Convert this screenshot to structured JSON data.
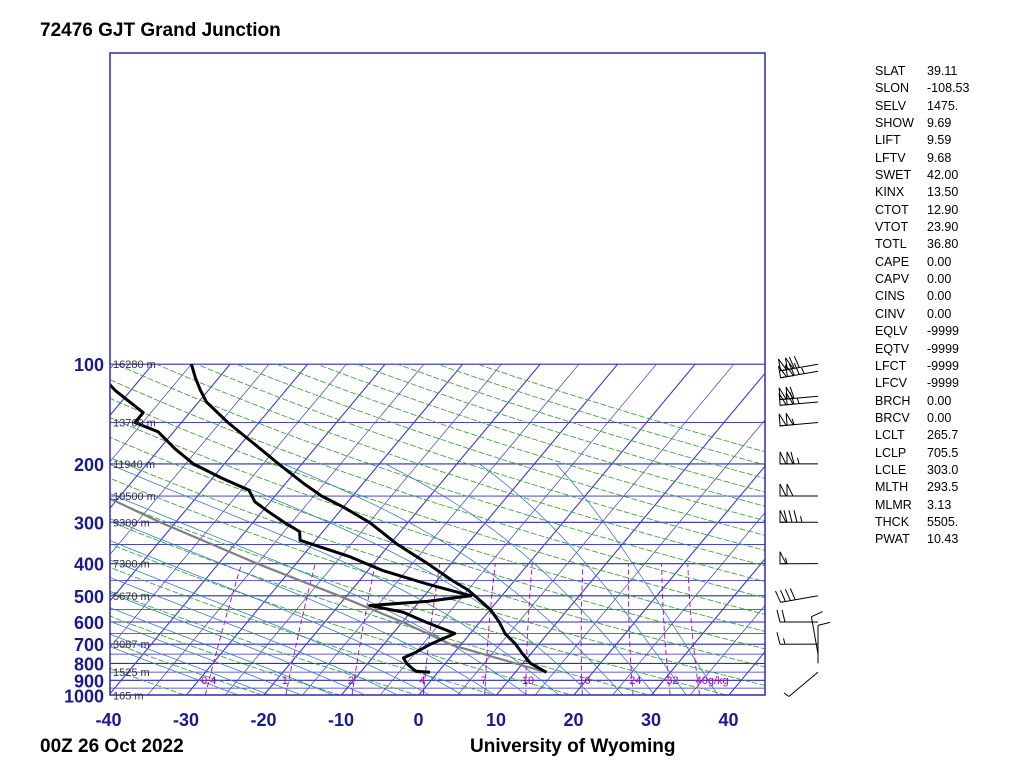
{
  "title": "72476 GJT Grand Junction",
  "footer": {
    "time": "00Z 26 Oct 2022",
    "source": "University of Wyoming"
  },
  "colors": {
    "frame": "#2b2bb8",
    "isotherm": "#3a3ad0",
    "dry_adiabat": "#3ea83e",
    "moist_adiabat": "#3a7fc0",
    "mixing_ratio": "#b000b0",
    "sounding": "#000000",
    "parcel": "#808080"
  },
  "chart_data": {
    "type": "skew-t",
    "pressure_levels": [
      100,
      200,
      300,
      400,
      500,
      600,
      700,
      800,
      900,
      1000
    ],
    "pressure_labels": [
      "100",
      "200",
      "300",
      "400",
      "500",
      "600",
      "700",
      "800",
      "900",
      "1000"
    ],
    "temperature_ticks": [
      -40,
      -30,
      -20,
      -10,
      0,
      10,
      20,
      30,
      40
    ],
    "temperature_labels": [
      "-40",
      "-30",
      "-20",
      "-10",
      "0",
      "10",
      "20",
      "30",
      "40"
    ],
    "height_labels": [
      {
        "p": 100,
        "text": "16280 m"
      },
      {
        "p": 150,
        "text": "13760 m"
      },
      {
        "p": 200,
        "text": "11940 m"
      },
      {
        "p": 250,
        "text": "10500 m"
      },
      {
        "p": 300,
        "text": "9300 m"
      },
      {
        "p": 400,
        "text": "7300 m"
      },
      {
        "p": 500,
        "text": "5670 m"
      },
      {
        "p": 700,
        "text": "3087 m"
      },
      {
        "p": 850,
        "text": "1525 m"
      },
      {
        "p": 1000,
        "text": "165 m"
      }
    ],
    "mixing_ratio_labels": [
      "0.4",
      "1",
      "2",
      "4",
      "7",
      "10",
      "16",
      "24",
      "32",
      "40g/kg"
    ],
    "mixing_ratio_values": [
      0.4,
      1,
      2,
      4,
      7,
      10,
      16,
      24,
      32,
      40
    ],
    "temperature_profile": [
      {
        "p": 851,
        "t": 14.0
      },
      {
        "p": 800,
        "t": 11.0
      },
      {
        "p": 750,
        "t": 9.0
      },
      {
        "p": 700,
        "t": 7.0
      },
      {
        "p": 650,
        "t": 4.5
      },
      {
        "p": 600,
        "t": 2.5
      },
      {
        "p": 550,
        "t": 0.0
      },
      {
        "p": 500,
        "t": -3.5
      },
      {
        "p": 480,
        "t": -5.0
      },
      {
        "p": 450,
        "t": -8.0
      },
      {
        "p": 400,
        "t": -13.0
      },
      {
        "p": 350,
        "t": -19.0
      },
      {
        "p": 300,
        "t": -25.0
      },
      {
        "p": 270,
        "t": -30.0
      },
      {
        "p": 250,
        "t": -34.0
      },
      {
        "p": 230,
        "t": -37.5
      },
      {
        "p": 200,
        "t": -43.0
      },
      {
        "p": 180,
        "t": -47.0
      },
      {
        "p": 150,
        "t": -54.0
      },
      {
        "p": 130,
        "t": -59.0
      },
      {
        "p": 120,
        "t": -61.0
      },
      {
        "p": 110,
        "t": -63.0
      },
      {
        "p": 100,
        "t": -65.0
      }
    ],
    "dewpoint_profile": [
      {
        "p": 851,
        "t": -1.0
      },
      {
        "p": 845,
        "t": -3.0
      },
      {
        "p": 800,
        "t": -5.0
      },
      {
        "p": 770,
        "t": -6.0
      },
      {
        "p": 740,
        "t": -5.0
      },
      {
        "p": 700,
        "t": -4.0
      },
      {
        "p": 650,
        "t": -2.0
      },
      {
        "p": 600,
        "t": -7.0
      },
      {
        "p": 560,
        "t": -11.0
      },
      {
        "p": 535,
        "t": -16.0
      },
      {
        "p": 520,
        "t": -9.0
      },
      {
        "p": 500,
        "t": -4.0
      },
      {
        "p": 460,
        "t": -11.0
      },
      {
        "p": 420,
        "t": -18.0
      },
      {
        "p": 380,
        "t": -24.0
      },
      {
        "p": 340,
        "t": -32.0
      },
      {
        "p": 320,
        "t": -33.0
      },
      {
        "p": 300,
        "t": -36.0
      },
      {
        "p": 280,
        "t": -39.0
      },
      {
        "p": 260,
        "t": -42.0
      },
      {
        "p": 240,
        "t": -44.0
      },
      {
        "p": 220,
        "t": -49.0
      },
      {
        "p": 200,
        "t": -54.0
      },
      {
        "p": 180,
        "t": -58.0
      },
      {
        "p": 160,
        "t": -62.0
      },
      {
        "p": 150,
        "t": -66.0
      },
      {
        "p": 140,
        "t": -66.0
      },
      {
        "p": 120,
        "t": -72.0
      },
      {
        "p": 100,
        "t": -78.0
      }
    ],
    "parcel_profile": [
      {
        "p": 851,
        "t": 14.0
      },
      {
        "p": 705.5,
        "t": -1.0
      },
      {
        "p": 600,
        "t": -10.0
      },
      {
        "p": 500,
        "t": -21.0
      },
      {
        "p": 400,
        "t": -35.0
      },
      {
        "p": 300,
        "t": -52.0
      },
      {
        "p": 250,
        "t": -62.0
      },
      {
        "p": 200,
        "t": -73.0
      },
      {
        "p": 150,
        "t": -88.0
      },
      {
        "p": 100,
        "t": -108.0
      }
    ],
    "wind_barbs": [
      {
        "p": 100,
        "dir": 260,
        "spd": 120
      },
      {
        "p": 105,
        "dir": 260,
        "spd": 125
      },
      {
        "p": 125,
        "dir": 265,
        "spd": 110
      },
      {
        "p": 130,
        "dir": 265,
        "spd": 115
      },
      {
        "p": 150,
        "dir": 265,
        "spd": 105
      },
      {
        "p": 200,
        "dir": 270,
        "spd": 115
      },
      {
        "p": 250,
        "dir": 270,
        "spd": 100
      },
      {
        "p": 300,
        "dir": 270,
        "spd": 85
      },
      {
        "p": 400,
        "dir": 270,
        "spd": 55
      },
      {
        "p": 500,
        "dir": 260,
        "spd": 40
      },
      {
        "p": 600,
        "dir": 270,
        "spd": 20
      },
      {
        "p": 700,
        "dir": 270,
        "spd": 15
      },
      {
        "p": 750,
        "dir": 350,
        "spd": 10
      },
      {
        "p": 800,
        "dir": 360,
        "spd": 10
      },
      {
        "p": 850,
        "dir": 230,
        "spd": 5
      }
    ]
  },
  "indices": [
    {
      "key": "SLAT",
      "value": "39.11"
    },
    {
      "key": "SLON",
      "value": "-108.53"
    },
    {
      "key": "SELV",
      "value": "1475."
    },
    {
      "key": "SHOW",
      "value": "9.69"
    },
    {
      "key": "LIFT",
      "value": "9.59"
    },
    {
      "key": "LFTV",
      "value": "9.68"
    },
    {
      "key": "SWET",
      "value": "42.00"
    },
    {
      "key": "KINX",
      "value": "13.50"
    },
    {
      "key": "CTOT",
      "value": "12.90"
    },
    {
      "key": "VTOT",
      "value": "23.90"
    },
    {
      "key": "TOTL",
      "value": "36.80"
    },
    {
      "key": "CAPE",
      "value": "0.00"
    },
    {
      "key": "CAPV",
      "value": "0.00"
    },
    {
      "key": "CINS",
      "value": "0.00"
    },
    {
      "key": "CINV",
      "value": "0.00"
    },
    {
      "key": "EQLV",
      "value": "-9999"
    },
    {
      "key": "EQTV",
      "value": "-9999"
    },
    {
      "key": "LFCT",
      "value": "-9999"
    },
    {
      "key": "LFCV",
      "value": "-9999"
    },
    {
      "key": "BRCH",
      "value": "0.00"
    },
    {
      "key": "BRCV",
      "value": "0.00"
    },
    {
      "key": "LCLT",
      "value": "265.7"
    },
    {
      "key": "LCLP",
      "value": "705.5"
    },
    {
      "key": "LCLE",
      "value": "303.0"
    },
    {
      "key": "MLTH",
      "value": "293.5"
    },
    {
      "key": "MLMR",
      "value": "3.13"
    },
    {
      "key": "THCK",
      "value": "5505."
    },
    {
      "key": "PWAT",
      "value": "10.43"
    }
  ]
}
